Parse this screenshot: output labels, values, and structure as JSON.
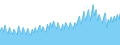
{
  "chart_data": {
    "type": "area",
    "series": [
      {
        "type": "area",
        "color": "#7dcff5",
        "values": [
          18,
          22,
          16,
          25,
          18,
          14,
          22,
          17,
          13,
          20,
          16,
          13,
          24,
          18,
          14,
          22,
          17,
          13,
          21,
          16,
          12,
          20,
          15,
          22,
          16,
          20,
          25,
          17,
          23,
          19,
          16,
          26,
          20,
          28,
          22,
          30,
          24,
          20,
          28,
          22,
          18,
          26,
          20,
          28,
          24,
          20,
          28,
          24,
          20,
          28,
          24,
          30,
          36,
          26,
          32,
          42,
          30,
          36,
          44,
          30,
          38,
          50,
          36,
          44,
          30,
          38,
          32,
          26,
          34,
          40,
          22,
          32,
          28,
          35,
          28,
          36,
          30,
          38,
          32,
          40
        ]
      },
      {
        "type": "line",
        "color": "#4db3e6",
        "values": [
          18,
          22,
          16,
          25,
          18,
          14,
          22,
          17,
          13,
          20,
          16,
          13,
          24,
          18,
          14,
          22,
          17,
          13,
          21,
          16,
          12,
          20,
          15,
          22,
          16,
          20,
          25,
          17,
          23,
          19,
          16,
          26,
          20,
          28,
          22,
          30,
          24,
          20,
          28,
          22,
          18,
          26,
          20,
          28,
          24,
          20,
          28,
          24,
          20,
          28,
          24,
          30,
          36,
          26,
          32,
          42,
          30,
          36,
          44,
          30,
          38,
          50,
          36,
          44,
          30,
          38,
          32,
          26,
          34,
          40,
          22,
          32,
          28,
          35,
          28,
          36,
          30,
          38,
          32,
          40
        ]
      }
    ],
    "xlim": [
      0,
      79
    ],
    "ylim": [
      0,
      55
    ],
    "tick_labels": false
  }
}
